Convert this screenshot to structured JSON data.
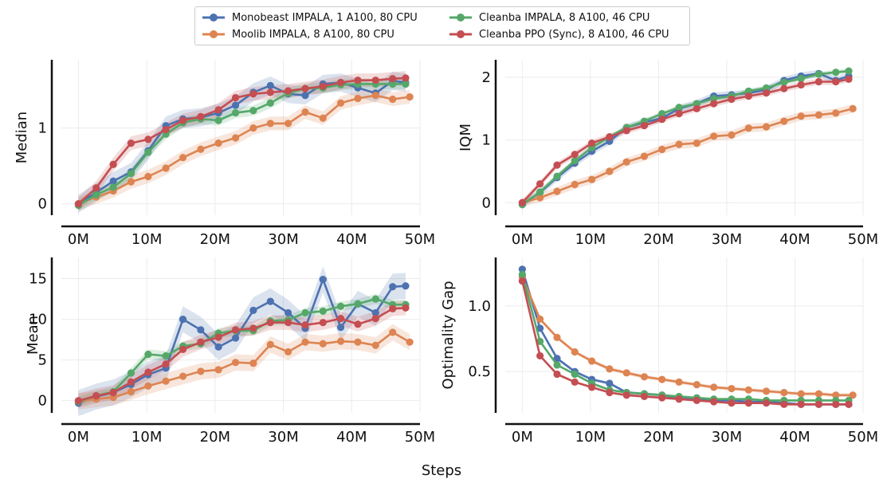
{
  "colors": {
    "s1": "#4c72b0",
    "s2": "#dd8452",
    "s3": "#55a868",
    "s4": "#c44e52"
  },
  "legend": [
    {
      "label": "Monobeast IMPALA, 1 A100, 80 CPU",
      "color": "#4c72b0"
    },
    {
      "label": "Moolib IMPALA, 8 A100, 80 CPU",
      "color": "#dd8452"
    },
    {
      "label": "Cleanba IMPALA, 8 A100, 46 CPU",
      "color": "#55a868"
    },
    {
      "label": "Cleanba PPO (Sync), 8 A100, 46 CPU",
      "color": "#c44e52"
    }
  ],
  "xlabel": "Steps",
  "chart_data": [
    {
      "type": "line",
      "ylabel": "Median",
      "xlim": [
        -2.5,
        50
      ],
      "ylim": [
        -0.15,
        1.9
      ],
      "xticks": [
        0,
        10,
        20,
        30,
        40,
        50
      ],
      "xticklabels": [
        "0M",
        "10M",
        "20M",
        "30M",
        "40M",
        "50M"
      ],
      "yticks": [
        0,
        1
      ],
      "yticklabels": [
        "0",
        "1"
      ],
      "series": [
        {
          "name": "Monobeast IMPALA, 1 A100, 80 CPU",
          "color": "#4c72b0",
          "band": 0.12,
          "x": [
            0,
            2.6,
            5.1,
            7.7,
            10.2,
            12.8,
            15.3,
            17.9,
            20.5,
            23,
            25.6,
            28.1,
            30.7,
            33.2,
            35.8,
            38.4,
            40.9,
            43.5,
            46,
            47.9
          ],
          "y": [
            0,
            0.15,
            0.3,
            0.42,
            0.7,
            1.03,
            1.12,
            1.14,
            1.2,
            1.3,
            1.47,
            1.56,
            1.45,
            1.43,
            1.58,
            1.6,
            1.53,
            1.46,
            1.62,
            1.6
          ]
        },
        {
          "name": "Moolib IMPALA, 8 A100, 80 CPU",
          "color": "#dd8452",
          "band": 0.09,
          "x": [
            0,
            2.6,
            5.1,
            7.7,
            10.2,
            12.8,
            15.3,
            17.9,
            20.5,
            23,
            25.6,
            28.1,
            30.7,
            33.2,
            35.8,
            38.4,
            40.9,
            43.5,
            46,
            48.5
          ],
          "y": [
            0,
            0.09,
            0.17,
            0.29,
            0.36,
            0.47,
            0.61,
            0.72,
            0.8,
            0.87,
            1,
            1.06,
            1.06,
            1.21,
            1.13,
            1.33,
            1.39,
            1.43,
            1.38,
            1.41
          ]
        },
        {
          "name": "Cleanba IMPALA, 8 A100, 46 CPU",
          "color": "#55a868",
          "band": 0.07,
          "x": [
            0,
            2.6,
            5.1,
            7.7,
            10.2,
            12.8,
            15.3,
            17.9,
            20.5,
            23,
            25.6,
            28.1,
            30.7,
            33.2,
            35.8,
            38.4,
            40.9,
            43.5,
            46,
            47.9
          ],
          "y": [
            -0.02,
            0.12,
            0.22,
            0.4,
            0.68,
            0.92,
            1.07,
            1.12,
            1.1,
            1.2,
            1.23,
            1.33,
            1.46,
            1.52,
            1.53,
            1.57,
            1.58,
            1.58,
            1.58,
            1.58
          ]
        },
        {
          "name": "Cleanba PPO (Sync), 8 A100, 46 CPU",
          "color": "#c44e52",
          "band": 0.09,
          "x": [
            0,
            2.6,
            5.1,
            7.7,
            10.2,
            12.8,
            15.3,
            17.9,
            20.5,
            23,
            25.6,
            28.1,
            30.7,
            33.2,
            35.8,
            38.4,
            40.9,
            43.5,
            46,
            47.9
          ],
          "y": [
            0,
            0.21,
            0.52,
            0.8,
            0.85,
            0.98,
            1.1,
            1.15,
            1.24,
            1.4,
            1.45,
            1.47,
            1.49,
            1.52,
            1.55,
            1.6,
            1.63,
            1.63,
            1.65,
            1.66
          ]
        }
      ]
    },
    {
      "type": "line",
      "ylabel": "IQM",
      "xlim": [
        -2.5,
        50
      ],
      "ylim": [
        -0.2,
        2.28
      ],
      "xticks": [
        0,
        10,
        20,
        30,
        40,
        50
      ],
      "xticklabels": [
        "0M",
        "10M",
        "20M",
        "30M",
        "40M",
        "50M"
      ],
      "yticks": [
        0,
        1,
        2
      ],
      "yticklabels": [
        "0",
        "1",
        "2"
      ],
      "series": [
        {
          "name": "Monobeast IMPALA, 1 A100, 80 CPU",
          "color": "#4c72b0",
          "band": 0.06,
          "x": [
            0,
            2.6,
            5.1,
            7.7,
            10.2,
            12.8,
            15.3,
            17.9,
            20.5,
            23,
            25.6,
            28.1,
            30.7,
            33.2,
            35.8,
            38.4,
            40.9,
            43.5,
            46,
            47.9
          ],
          "y": [
            -0.03,
            0.16,
            0.4,
            0.63,
            0.82,
            0.98,
            1.2,
            1.28,
            1.35,
            1.5,
            1.58,
            1.7,
            1.72,
            1.75,
            1.8,
            1.95,
            2.02,
            2.06,
            1.95,
            2.02
          ]
        },
        {
          "name": "Moolib IMPALA, 8 A100, 80 CPU",
          "color": "#dd8452",
          "band": 0.07,
          "x": [
            0,
            2.6,
            5.1,
            7.7,
            10.2,
            12.8,
            15.3,
            17.9,
            20.5,
            23,
            25.6,
            28.1,
            30.7,
            33.2,
            35.8,
            38.4,
            40.9,
            43.5,
            46,
            48.5
          ],
          "y": [
            0,
            0.08,
            0.18,
            0.29,
            0.37,
            0.5,
            0.65,
            0.74,
            0.85,
            0.93,
            0.95,
            1.06,
            1.08,
            1.19,
            1.21,
            1.3,
            1.38,
            1.4,
            1.43,
            1.5
          ]
        },
        {
          "name": "Cleanba IMPALA, 8 A100, 46 CPU",
          "color": "#55a868",
          "band": 0.04,
          "x": [
            0,
            2.6,
            5.1,
            7.7,
            10.2,
            12.8,
            15.3,
            17.9,
            20.5,
            23,
            25.6,
            28.1,
            30.7,
            33.2,
            35.8,
            38.4,
            40.9,
            43.5,
            46,
            47.9
          ],
          "y": [
            -0.03,
            0.17,
            0.42,
            0.67,
            0.88,
            1.05,
            1.2,
            1.3,
            1.42,
            1.52,
            1.58,
            1.66,
            1.7,
            1.78,
            1.83,
            1.92,
            1.98,
            2.05,
            2.08,
            2.1
          ]
        },
        {
          "name": "Cleanba PPO (Sync), 8 A100, 46 CPU",
          "color": "#c44e52",
          "band": 0.05,
          "x": [
            0,
            2.6,
            5.1,
            7.7,
            10.2,
            12.8,
            15.3,
            17.9,
            20.5,
            23,
            25.6,
            28.1,
            30.7,
            33.2,
            35.8,
            38.4,
            40.9,
            43.5,
            46,
            47.9
          ],
          "y": [
            0,
            0.3,
            0.6,
            0.77,
            0.95,
            1.05,
            1.15,
            1.23,
            1.33,
            1.42,
            1.5,
            1.58,
            1.65,
            1.7,
            1.75,
            1.82,
            1.88,
            1.93,
            1.93,
            1.97
          ]
        }
      ]
    },
    {
      "type": "line",
      "ylabel": "Mean",
      "xlim": [
        -2.5,
        50
      ],
      "ylim": [
        -1.5,
        17.6
      ],
      "xticks": [
        0,
        10,
        20,
        30,
        40,
        50
      ],
      "xticklabels": [
        "0M",
        "10M",
        "20M",
        "30M",
        "40M",
        "50M"
      ],
      "yticks": [
        0,
        5,
        10,
        15
      ],
      "yticklabels": [
        "0",
        "5",
        "10",
        "15"
      ],
      "series": [
        {
          "name": "Monobeast IMPALA, 1 A100, 80 CPU",
          "color": "#4c72b0",
          "band": 1.6,
          "x": [
            0,
            2.6,
            5.1,
            7.7,
            10.2,
            12.8,
            15.3,
            17.9,
            20.5,
            23,
            25.6,
            28.1,
            30.7,
            33.2,
            35.8,
            38.4,
            40.9,
            43.5,
            46,
            47.9
          ],
          "y": [
            -0.3,
            0.5,
            1,
            2,
            3.2,
            4,
            10,
            8.7,
            6.6,
            7.7,
            11.1,
            12.2,
            10.8,
            8.9,
            14.9,
            9,
            11.9,
            10.8,
            14,
            14.1
          ]
        },
        {
          "name": "Moolib IMPALA, 8 A100, 80 CPU",
          "color": "#dd8452",
          "band": 1.0,
          "x": [
            0,
            2.6,
            5.1,
            7.7,
            10.2,
            12.8,
            15.3,
            17.9,
            20.5,
            23,
            25.6,
            28.1,
            30.7,
            33.2,
            35.8,
            38.4,
            40.9,
            43.5,
            46,
            48.5
          ],
          "y": [
            -0.1,
            0.2,
            0.4,
            1.1,
            1.8,
            2.4,
            3,
            3.6,
            3.8,
            4.7,
            4.6,
            6.9,
            6,
            7.2,
            7,
            7.3,
            7.2,
            6.8,
            8.4,
            7.2
          ]
        },
        {
          "name": "Cleanba IMPALA, 8 A100, 46 CPU",
          "color": "#55a868",
          "band": 0.6,
          "x": [
            0,
            2.6,
            5.1,
            7.7,
            10.2,
            12.8,
            15.3,
            17.9,
            20.5,
            23,
            25.6,
            28.1,
            30.7,
            33.2,
            35.8,
            38.4,
            40.9,
            43.5,
            46,
            47.9
          ],
          "y": [
            -0.1,
            0.6,
            1.1,
            3.4,
            5.7,
            5.5,
            6.7,
            7,
            8.3,
            8.6,
            8.6,
            9.8,
            9.9,
            10.8,
            11,
            11.6,
            11.9,
            12.5,
            11.8,
            11.8
          ]
        },
        {
          "name": "Cleanba PPO (Sync), 8 A100, 46 CPU",
          "color": "#c44e52",
          "band": 0.9,
          "x": [
            0,
            2.6,
            5.1,
            7.7,
            10.2,
            12.8,
            15.3,
            17.9,
            20.5,
            23,
            25.6,
            28.1,
            30.7,
            33.2,
            35.8,
            38.4,
            40.9,
            43.5,
            46,
            47.9
          ],
          "y": [
            0,
            0.6,
            1,
            2.3,
            3.5,
            4.5,
            6.3,
            7.2,
            7.8,
            8.7,
            8.9,
            9.6,
            9.6,
            9.3,
            9.6,
            10.1,
            9.4,
            10.1,
            11.3,
            11.4
          ]
        }
      ]
    },
    {
      "type": "line",
      "ylabel": "Optimality Gap",
      "xlim": [
        -2.5,
        50
      ],
      "ylim": [
        0.185,
        1.37
      ],
      "xticks": [
        0,
        10,
        20,
        30,
        40,
        50
      ],
      "xticklabels": [
        "0M",
        "10M",
        "20M",
        "30M",
        "40M",
        "50M"
      ],
      "yticks": [
        0.5,
        1.0
      ],
      "yticklabels": [
        "0.5",
        "1.0"
      ],
      "series": [
        {
          "name": "Monobeast IMPALA, 1 A100, 80 CPU",
          "color": "#4c72b0",
          "band": 0.012,
          "x": [
            0,
            2.6,
            5.1,
            7.7,
            10.2,
            12.8,
            15.3,
            17.9,
            20.5,
            23,
            25.6,
            28.1,
            30.7,
            33.2,
            35.8,
            38.4,
            40.9,
            43.5,
            46,
            47.9
          ],
          "y": [
            1.28,
            0.83,
            0.6,
            0.5,
            0.44,
            0.41,
            0.34,
            0.33,
            0.32,
            0.3,
            0.29,
            0.28,
            0.28,
            0.27,
            0.27,
            0.26,
            0.25,
            0.25,
            0.25,
            0.25
          ]
        },
        {
          "name": "Moolib IMPALA, 8 A100, 80 CPU",
          "color": "#dd8452",
          "band": 0.015,
          "x": [
            0,
            2.6,
            5.1,
            7.7,
            10.2,
            12.8,
            15.3,
            17.9,
            20.5,
            23,
            25.6,
            28.1,
            30.7,
            33.2,
            35.8,
            38.4,
            40.9,
            43.5,
            46,
            48.5
          ],
          "y": [
            1.22,
            0.9,
            0.76,
            0.65,
            0.58,
            0.52,
            0.49,
            0.46,
            0.44,
            0.42,
            0.4,
            0.38,
            0.37,
            0.36,
            0.35,
            0.34,
            0.33,
            0.33,
            0.32,
            0.32
          ]
        },
        {
          "name": "Cleanba IMPALA, 8 A100, 46 CPU",
          "color": "#55a868",
          "band": 0.01,
          "x": [
            0,
            2.6,
            5.1,
            7.7,
            10.2,
            12.8,
            15.3,
            17.9,
            20.5,
            23,
            25.6,
            28.1,
            30.7,
            33.2,
            35.8,
            38.4,
            40.9,
            43.5,
            46,
            47.9
          ],
          "y": [
            1.24,
            0.73,
            0.55,
            0.48,
            0.41,
            0.36,
            0.34,
            0.33,
            0.32,
            0.31,
            0.3,
            0.29,
            0.29,
            0.29,
            0.28,
            0.28,
            0.28,
            0.28,
            0.28,
            0.28
          ]
        },
        {
          "name": "Cleanba PPO (Sync), 8 A100, 46 CPU",
          "color": "#c44e52",
          "band": 0.01,
          "x": [
            0,
            2.6,
            5.1,
            7.7,
            10.2,
            12.8,
            15.3,
            17.9,
            20.5,
            23,
            25.6,
            28.1,
            30.7,
            33.2,
            35.8,
            38.4,
            40.9,
            43.5,
            46,
            47.9
          ],
          "y": [
            1.19,
            0.62,
            0.48,
            0.42,
            0.38,
            0.34,
            0.32,
            0.31,
            0.3,
            0.29,
            0.28,
            0.27,
            0.26,
            0.26,
            0.26,
            0.25,
            0.25,
            0.25,
            0.25,
            0.25
          ]
        }
      ]
    }
  ]
}
